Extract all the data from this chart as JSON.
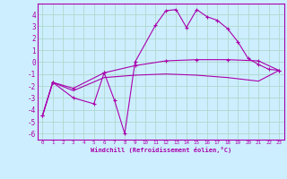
{
  "background_color": "#cceeff",
  "grid_color": "#b0d8cc",
  "line_color": "#aa00aa",
  "xlabel": "Windchill (Refroidissement éolien,°C)",
  "xlim": [
    -0.5,
    23.5
  ],
  "ylim": [
    -6.5,
    4.9
  ],
  "yticks": [
    -6,
    -5,
    -4,
    -3,
    -2,
    -1,
    0,
    1,
    2,
    3,
    4
  ],
  "xticks": [
    0,
    1,
    2,
    3,
    4,
    5,
    6,
    7,
    8,
    9,
    10,
    11,
    12,
    13,
    14,
    15,
    16,
    17,
    18,
    19,
    20,
    21,
    22,
    23
  ],
  "series": [
    {
      "x": [
        0,
        1,
        3,
        5,
        6,
        7,
        8,
        9,
        11,
        12,
        13,
        14,
        15,
        16,
        17,
        18,
        19,
        20,
        21,
        22,
        23
      ],
      "y": [
        -4.5,
        -1.7,
        -3.0,
        -3.5,
        -0.9,
        -3.2,
        -6.0,
        0.0,
        3.1,
        4.3,
        4.4,
        2.9,
        4.4,
        3.8,
        3.5,
        2.8,
        1.7,
        0.3,
        -0.2,
        -0.6,
        -0.7
      ],
      "marker": "+"
    },
    {
      "x": [
        0,
        1,
        3,
        6,
        9,
        12,
        15,
        18,
        21,
        23
      ],
      "y": [
        -4.5,
        -1.7,
        -2.2,
        -0.9,
        -0.3,
        0.1,
        0.2,
        0.2,
        0.1,
        -0.7
      ],
      "marker": "+"
    },
    {
      "x": [
        0,
        1,
        3,
        6,
        9,
        12,
        15,
        18,
        21,
        23
      ],
      "y": [
        -4.5,
        -1.7,
        -2.4,
        -1.3,
        -1.1,
        -1.0,
        -1.1,
        -1.3,
        -1.6,
        -0.7
      ],
      "marker": null
    }
  ],
  "xlabel_fontsize": 5.0,
  "xtick_fontsize": 4.2,
  "ytick_fontsize": 5.5
}
